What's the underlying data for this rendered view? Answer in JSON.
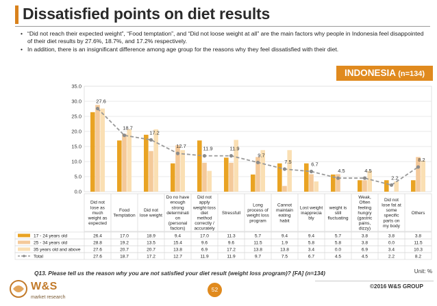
{
  "title": "Dissatisfied points on diet results",
  "bullets": [
    "“Did not reach their expected weight”, “Food temptation”, and “Did not loose weight at all” are the main factors why people in Indonesia feel disappointed of their diet results by 27.6%, 18.7%, and 17.2% respectively.",
    "In addition, there is an insignificant difference among age group for the reasons why they feel dissatisfied with their diet."
  ],
  "region": {
    "name": "INDONESIA",
    "n": "(n=134)"
  },
  "question": "Q13. Please tell us the reason why you are not satisfied your diet result (weight loss program)? [FA] (n=134)",
  "unit": "Unit: %",
  "page_number": "52",
  "copyright": "©2016 W&S GROUP",
  "logo": {
    "name": "W&S",
    "tagline": "market research"
  },
  "colors": {
    "accent": "#e08a1e",
    "s1": "#e9a323",
    "s2": "#f4c99a",
    "s3": "#fadfb3",
    "total": "#999999"
  },
  "chart_data": {
    "type": "bar",
    "ylim": [
      0,
      35
    ],
    "yticks": [
      "0.0",
      "5.0",
      "10.0",
      "15.0",
      "20.0",
      "25.0",
      "30.0",
      "35.0"
    ],
    "categories": [
      [
        "Did not",
        "lose as",
        "much",
        "weight as",
        "expected"
      ],
      [
        "Food",
        "Temptation"
      ],
      [
        "Did not",
        "lose weight"
      ],
      [
        "Do no have",
        "enough",
        "strong",
        "determinati",
        "on",
        "(personal",
        "factors)"
      ],
      [
        "Did not",
        "apply",
        "weight-loss",
        "diet",
        "method",
        "correctly /",
        "accurately"
      ],
      [
        "Stressfull"
      ],
      [
        "Long",
        "process of",
        "weight loss",
        "program"
      ],
      [
        "Cannot",
        "maintain",
        "eating",
        "habit"
      ],
      [
        "Lost weight",
        "inapprecia",
        "bly"
      ],
      [
        "weight is",
        "still",
        "fluctuating"
      ],
      [
        "Weak,",
        "Often",
        "feeling",
        "hungry",
        "(gastric",
        "pains,",
        "dizzy)"
      ],
      [
        "Did not",
        "lose fat at",
        "some",
        "specific",
        "parts on",
        "my body"
      ],
      [
        "Others"
      ]
    ],
    "series": [
      {
        "name": "17 - 24 years old",
        "kind": "bar",
        "values": [
          "26.4",
          "17.0",
          "18.9",
          "9.4",
          "17.0",
          "11.3",
          "5.7",
          "9.4",
          "9.4",
          "5.7",
          "3.8",
          "3.8",
          "3.8"
        ]
      },
      {
        "name": "25 - 34 years old",
        "kind": "bar",
        "values": [
          "28.8",
          "19.2",
          "13.5",
          "15.4",
          "9.6",
          "9.6",
          "11.5",
          "1.9",
          "5.8",
          "5.8",
          "3.8",
          "0.0",
          "11.5"
        ]
      },
      {
        "name": "35 years old and above",
        "kind": "bar",
        "values": [
          "27.6",
          "20.7",
          "20.7",
          "13.8",
          "6.9",
          "17.2",
          "13.8",
          "13.8",
          "3.4",
          "0.0",
          "6.9",
          "3.4",
          "10.3"
        ]
      },
      {
        "name": "Total",
        "kind": "line",
        "values": [
          "27.6",
          "18.7",
          "17.2",
          "12.7",
          "11.9",
          "11.9",
          "9.7",
          "7.5",
          "6.7",
          "4.5",
          "4.5",
          "2.2",
          "8.2"
        ]
      }
    ]
  }
}
